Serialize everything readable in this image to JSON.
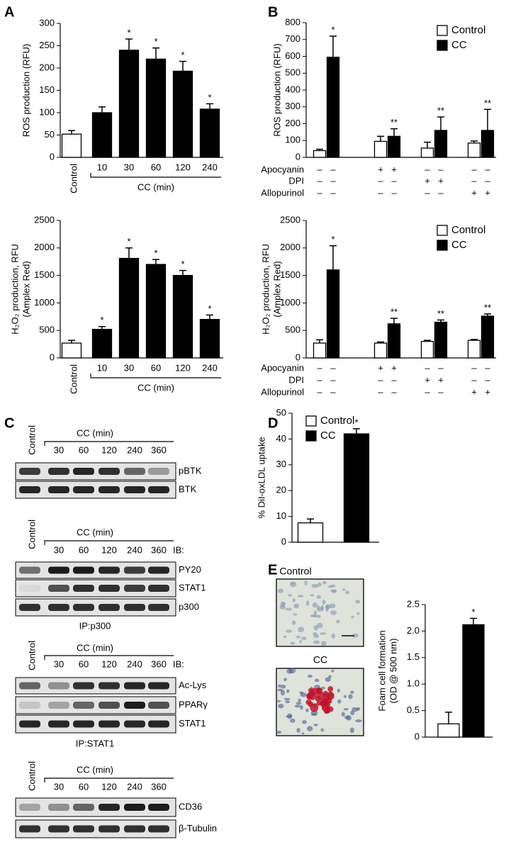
{
  "panel_labels": [
    "A",
    "B",
    "C",
    "D",
    "E"
  ],
  "chart_data": [
    {
      "type": "bar",
      "ylabel": [
        "ROS production (RFU)"
      ],
      "categories": [
        "Control",
        "10",
        "30",
        "60",
        "120",
        "240"
      ],
      "group_label": "CC (min)",
      "values": [
        52,
        100,
        240,
        220,
        193,
        108
      ],
      "errors": [
        8,
        13,
        25,
        25,
        22,
        12
      ],
      "colors": [
        "#ffffff",
        "#000000",
        "#000000",
        "#000000",
        "#000000",
        "#000000"
      ],
      "annotations": [
        null,
        null,
        "*",
        "*",
        "*",
        "*"
      ],
      "ylim": [
        0,
        300
      ],
      "yticks": [
        0,
        50,
        100,
        150,
        200,
        250,
        300
      ]
    },
    {
      "type": "bar",
      "ylabel": [
        "H₂O₂ production, RFU",
        "(Amplex Red)"
      ],
      "categories": [
        "Control",
        "10",
        "30",
        "60",
        "120",
        "240"
      ],
      "group_label": "CC (min)",
      "values": [
        270,
        520,
        1810,
        1700,
        1500,
        700
      ],
      "errors": [
        50,
        50,
        190,
        90,
        90,
        80
      ],
      "colors": [
        "#ffffff",
        "#000000",
        "#000000",
        "#000000",
        "#000000",
        "#000000"
      ],
      "annotations": [
        null,
        "*",
        "*",
        "*",
        "*",
        "*"
      ],
      "ylim": [
        0,
        2500
      ],
      "yticks": [
        0,
        500,
        1000,
        1500,
        2000,
        2500
      ]
    },
    {
      "type": "bar",
      "ylabel": [
        "ROS production (RFU)"
      ],
      "legend": "upper right",
      "series": [
        {
          "name": "Control",
          "color": "#ffffff",
          "values": [
            40,
            95,
            55,
            85
          ],
          "errors": [
            8,
            30,
            35,
            12
          ]
        },
        {
          "name": "CC",
          "color": "#000000",
          "values": [
            595,
            125,
            160,
            160
          ],
          "errors": [
            125,
            45,
            80,
            125
          ],
          "annotations": [
            "*",
            "**",
            "**",
            "**"
          ]
        }
      ],
      "treatments": [
        {
          "name": "Apocyanin",
          "marks": [
            "–",
            "–",
            "+",
            "+",
            "–",
            "–",
            "–",
            "–"
          ]
        },
        {
          "name": "DPI",
          "marks": [
            "–",
            "–",
            "–",
            "–",
            "+",
            "+",
            "–",
            "–"
          ]
        },
        {
          "name": "Allopurinol",
          "marks": [
            "–",
            "–",
            "–",
            "–",
            "–",
            "–",
            "+",
            "+"
          ]
        }
      ],
      "ylim": [
        0,
        800
      ],
      "yticks": [
        0,
        100,
        200,
        300,
        400,
        500,
        600,
        700,
        800
      ]
    },
    {
      "type": "bar",
      "ylabel": [
        "H₂O₂ production, RFU",
        "(Amplex Red)"
      ],
      "legend": "upper right",
      "series": [
        {
          "name": "Control",
          "color": "#ffffff",
          "values": [
            270,
            270,
            300,
            320
          ],
          "errors": [
            60,
            20,
            20,
            15
          ]
        },
        {
          "name": "CC",
          "color": "#000000",
          "values": [
            1600,
            620,
            650,
            760
          ],
          "errors": [
            440,
            100,
            40,
            40
          ],
          "annotations": [
            "*",
            "**",
            "**",
            "**"
          ]
        }
      ],
      "treatments": [
        {
          "name": "Apocyanin",
          "marks": [
            "–",
            "–",
            "+",
            "+",
            "–",
            "–",
            "–",
            "–"
          ]
        },
        {
          "name": "DPI",
          "marks": [
            "–",
            "–",
            "–",
            "–",
            "+",
            "+",
            "–",
            "–"
          ]
        },
        {
          "name": "Allopurinol",
          "marks": [
            "–",
            "–",
            "–",
            "–",
            "–",
            "–",
            "+",
            "+"
          ]
        }
      ],
      "ylim": [
        0,
        2500
      ],
      "yticks": [
        0,
        500,
        1000,
        1500,
        2000,
        2500
      ]
    },
    {
      "type": "bar",
      "ylabel": [
        "% DiI-oxLDL uptake"
      ],
      "legend": "upper left",
      "series": [
        {
          "name": "Control",
          "color": "#ffffff",
          "values": [
            7.5
          ],
          "errors": [
            1.5
          ]
        },
        {
          "name": "CC",
          "color": "#000000",
          "values": [
            42
          ],
          "errors": [
            2
          ],
          "annotations": [
            "*"
          ]
        }
      ],
      "ylim": [
        0,
        50
      ],
      "yticks": [
        0,
        10,
        20,
        30,
        40,
        50
      ]
    },
    {
      "type": "bar",
      "ylabel": [
        "Foam cell formation",
        "(OD @ 500 nm)"
      ],
      "values": [
        0.25,
        2.12
      ],
      "errors": [
        0.22,
        0.12
      ],
      "colors": [
        "#ffffff",
        "#000000"
      ],
      "annotations": [
        null,
        "*"
      ],
      "ylim": [
        0,
        2.5
      ],
      "yticks": [
        0,
        0.5,
        {
          "value": 1,
          "label": "1.0"
        },
        1.5,
        {
          "value": 2,
          "label": "2.0"
        },
        2.5
      ]
    }
  ],
  "blots": [
    {
      "control": "Control",
      "group_label": "CC (min)",
      "times": [
        "30",
        "60",
        "120",
        "240",
        "360"
      ],
      "rows": [
        "pBTK",
        "BTK"
      ]
    },
    {
      "control": "Control",
      "group_label": "CC (min)",
      "times": [
        "30",
        "60",
        "120",
        "240",
        "360"
      ],
      "ib": "IB:",
      "rows": [
        "PY20",
        "STAT1",
        "p300"
      ],
      "ip": "IP:p300"
    },
    {
      "control": "Control",
      "group_label": "CC (min)",
      "times": [
        "30",
        "60",
        "120",
        "240",
        "360"
      ],
      "ib": "IB:",
      "rows": [
        "Ac-Lys",
        "PPARγ",
        "STAT1"
      ],
      "ip": "IP:STAT1"
    },
    {
      "control": "Control",
      "group_label": "CC (min)",
      "times": [
        "30",
        "60",
        "120",
        "240",
        "360"
      ],
      "rows": [
        "CD36",
        "β-Tubulin"
      ]
    }
  ],
  "images": [
    "Control",
    "CC"
  ]
}
